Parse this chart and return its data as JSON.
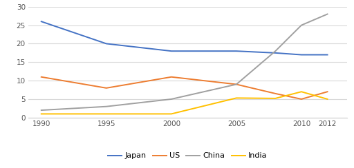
{
  "years": [
    1990,
    1995,
    2000,
    2005,
    2008,
    2010,
    2012
  ],
  "japan": [
    26,
    20,
    18,
    18,
    17.5,
    17,
    17
  ],
  "us": [
    11,
    8,
    11,
    9,
    6.5,
    5,
    7
  ],
  "china": [
    2,
    3,
    5,
    9,
    18,
    25,
    28
  ],
  "india": [
    1,
    1,
    1,
    5.3,
    5.2,
    7,
    5
  ],
  "japan_color": "#4472C4",
  "us_color": "#ED7D31",
  "china_color": "#A0A0A0",
  "india_color": "#FFC000",
  "legend_labels": [
    "Japan",
    "US",
    "China",
    "India"
  ],
  "ylim": [
    0,
    30
  ],
  "yticks": [
    0,
    5,
    10,
    15,
    20,
    25,
    30
  ],
  "xticks": [
    1990,
    1995,
    2000,
    2005,
    2010,
    2012
  ],
  "xlim_left": 1989,
  "xlim_right": 2013.5,
  "background_color": "#ffffff",
  "grid_color": "#d9d9d9",
  "linewidth": 1.4
}
